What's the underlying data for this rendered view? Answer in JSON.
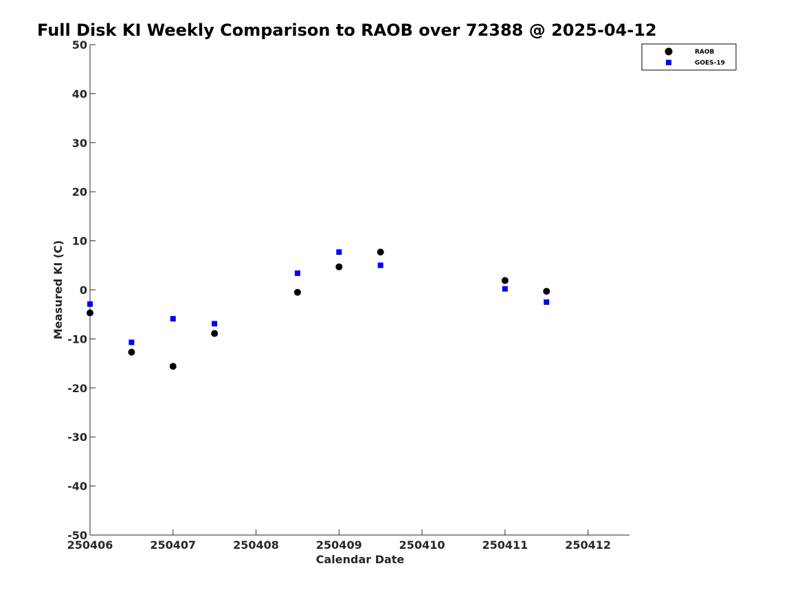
{
  "chart_data": {
    "type": "scatter",
    "title": "Full Disk KI Weekly Comparison to RAOB over 72388 @ 2025-04-12",
    "xlabel": "Calendar Date",
    "ylabel": "Measured KI (C)",
    "xlim": [
      250406,
      250412.5
    ],
    "ylim": [
      -50,
      50
    ],
    "xticks": [
      250406,
      250407,
      250408,
      250409,
      250410,
      250411,
      250412
    ],
    "xtick_labels": [
      "250406",
      "250407",
      "250408",
      "250409",
      "250410",
      "250411",
      "250412"
    ],
    "yticks": [
      -50,
      -40,
      -30,
      -20,
      -10,
      0,
      10,
      20,
      30,
      40,
      50
    ],
    "ytick_labels": [
      "-50",
      "-40",
      "-30",
      "-20",
      "-10",
      "0",
      "10",
      "20",
      "30",
      "40",
      "50"
    ],
    "grid": false,
    "legend_position": "top-right",
    "series": [
      {
        "name": "RAOB",
        "marker": "circle",
        "color": "#000000",
        "x": [
          250406,
          250406.5,
          250407,
          250407.5,
          250408.5,
          250409,
          250409.5,
          250411,
          250411.5
        ],
        "y": [
          -4.7,
          -12.7,
          -15.6,
          -8.9,
          -0.5,
          4.7,
          7.7,
          1.9,
          -0.3
        ]
      },
      {
        "name": "GOES-19",
        "marker": "square",
        "color": "#0000ff",
        "x": [
          250406,
          250406.5,
          250407,
          250407.5,
          250408.5,
          250409,
          250409.5,
          250411,
          250411.5
        ],
        "y": [
          -2.9,
          -10.7,
          -5.9,
          -6.9,
          3.4,
          7.7,
          5.0,
          0.2,
          -2.5
        ]
      }
    ]
  }
}
